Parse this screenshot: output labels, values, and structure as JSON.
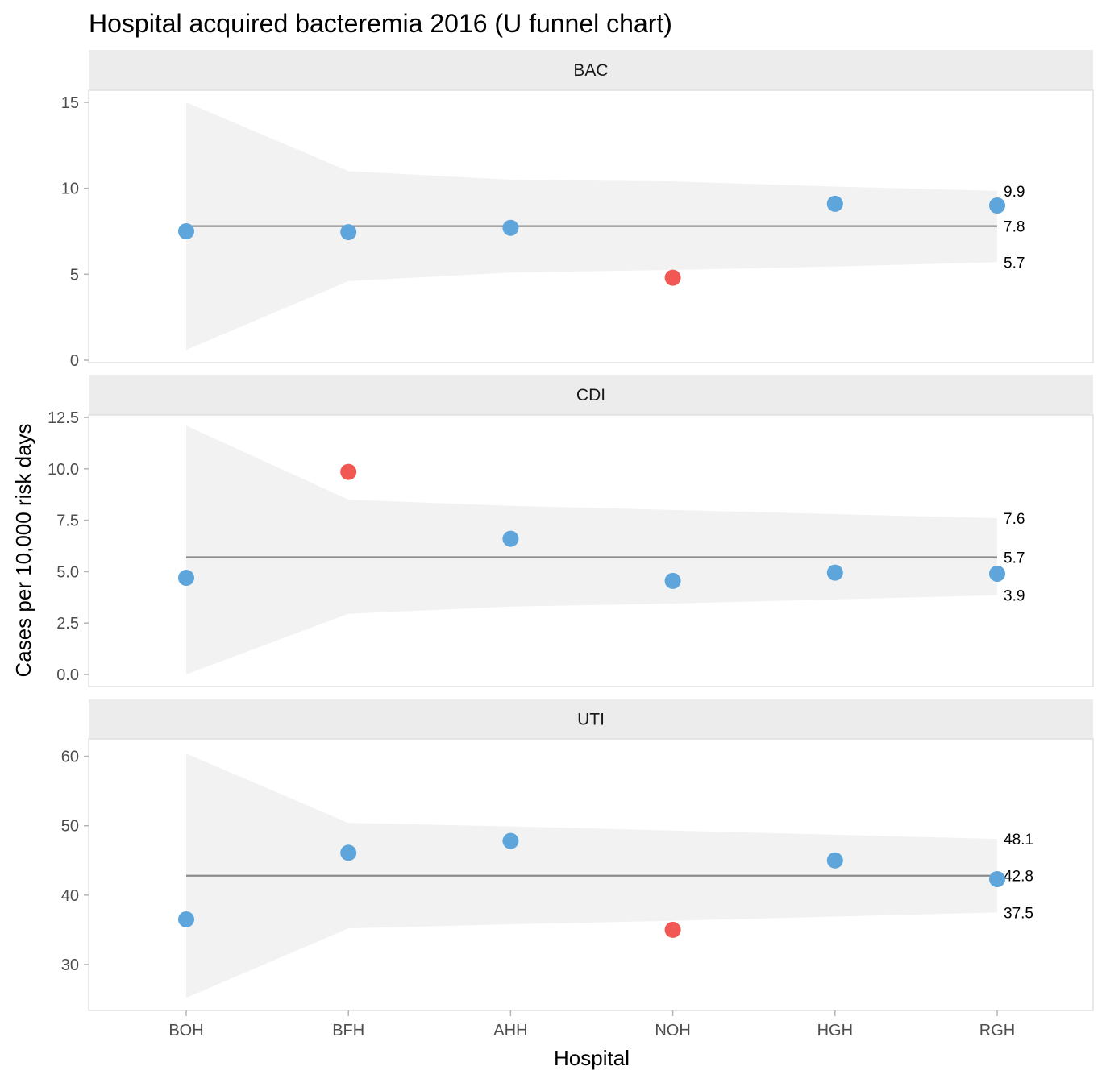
{
  "chart_data": {
    "type": "scatter",
    "title": "Hospital acquired bacteremia 2016 (U funnel chart)",
    "xlabel": "Hospital",
    "ylabel": "Cases per 10,000 risk days",
    "categories": [
      "BOH",
      "BFH",
      "AHH",
      "NOH",
      "HGH",
      "RGH"
    ],
    "colors": {
      "inside": "#5da5da",
      "outside": "#f15854",
      "centre_line": "#8c8c8c",
      "funnel": "#f2f2f2",
      "strip": "#ececec"
    },
    "grid": false,
    "legend": "none",
    "panels": [
      {
        "name": "BAC",
        "ylim": [
          0,
          15
        ],
        "yticks": [
          0,
          5,
          10,
          15
        ],
        "ytick_labels": [
          "0",
          "5",
          "10",
          "15"
        ],
        "centre": 7.8,
        "values": [
          7.5,
          7.45,
          7.7,
          4.8,
          9.1,
          9.0
        ],
        "outliers": [
          false,
          false,
          false,
          true,
          false,
          false
        ],
        "upper_limits": [
          15.0,
          11.0,
          10.5,
          10.4,
          10.1,
          9.85
        ],
        "lower_limits": [
          0.6,
          4.6,
          5.1,
          5.25,
          5.45,
          5.7
        ],
        "limit_labels": {
          "upper": "9.9",
          "centre": "7.8",
          "lower": "5.7"
        }
      },
      {
        "name": "CDI",
        "ylim": [
          0,
          12.5
        ],
        "yticks": [
          0,
          2.5,
          5,
          7.5,
          10,
          12.5
        ],
        "ytick_labels": [
          "0.0",
          "2.5",
          "5.0",
          "7.5",
          "10.0",
          "12.5"
        ],
        "centre": 5.7,
        "values": [
          4.7,
          9.85,
          6.6,
          4.55,
          4.95,
          4.9
        ],
        "outliers": [
          false,
          true,
          false,
          false,
          false,
          false
        ],
        "upper_limits": [
          12.1,
          8.5,
          8.2,
          8.0,
          7.8,
          7.6
        ],
        "lower_limits": [
          0.0,
          2.95,
          3.3,
          3.45,
          3.65,
          3.85
        ],
        "limit_labels": {
          "upper": "7.6",
          "centre": "5.7",
          "lower": "3.9"
        }
      },
      {
        "name": "UTI",
        "ylim": [
          25,
          61
        ],
        "yticks": [
          30,
          40,
          50,
          60
        ],
        "ytick_labels": [
          "30",
          "40",
          "50",
          "60"
        ],
        "centre": 42.8,
        "values": [
          36.5,
          46.1,
          47.8,
          35.0,
          45.0,
          42.3
        ],
        "outliers": [
          false,
          false,
          false,
          true,
          false,
          false
        ],
        "upper_limits": [
          60.4,
          50.4,
          49.9,
          49.3,
          48.7,
          48.1
        ],
        "lower_limits": [
          25.2,
          35.2,
          35.8,
          36.3,
          36.9,
          37.5
        ],
        "limit_labels": {
          "upper": "48.1",
          "centre": "42.8",
          "lower": "37.5"
        }
      }
    ]
  }
}
